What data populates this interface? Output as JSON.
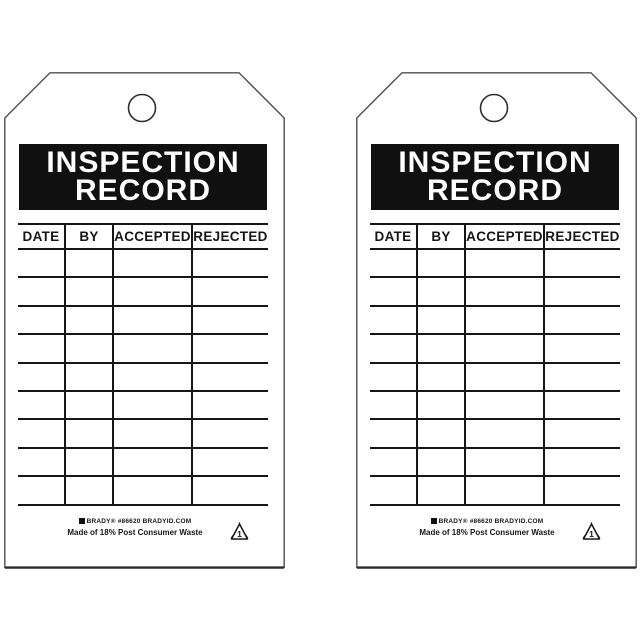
{
  "page": {
    "background_color": "#ffffff"
  },
  "instances": 2,
  "tag": {
    "title": {
      "line1": "INSPECTION",
      "line2": "RECORD"
    },
    "table": {
      "headers": [
        "DATE",
        "BY",
        "ACCEPTED",
        "REJECTED"
      ],
      "empty_row_count": 9,
      "cells_are_blank": true
    },
    "footer": {
      "brand_line": "BRADY® #86620 BRADYID.COM",
      "material_line": "Made of 18% Post Consumer Waste",
      "recycle_label": "1"
    },
    "icons": {
      "punch_hole": "punch-hole",
      "brady_logo": "brady-logo-icon",
      "recycle": "recycle-type1-icon"
    },
    "colors": {
      "banner_bg": "#101010",
      "banner_fg": "#ffffff",
      "line": "#161616",
      "outline": "#4d4d4d",
      "tag_fill": "#ffffff"
    }
  }
}
